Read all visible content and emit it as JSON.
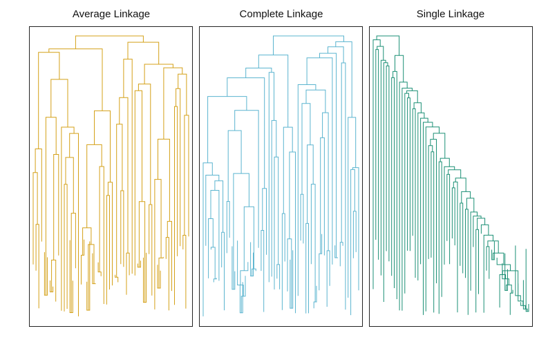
{
  "panels": [
    {
      "title": "Average Linkage",
      "color": "#d4a017",
      "leaves": 56,
      "seed": 11
    },
    {
      "title": "Complete Linkage",
      "color": "#5ab4cf",
      "leaves": 60,
      "seed": 23
    },
    {
      "title": "Single Linkage",
      "color": "#1a8f74",
      "leaves": 60,
      "seed": 37
    }
  ]
}
